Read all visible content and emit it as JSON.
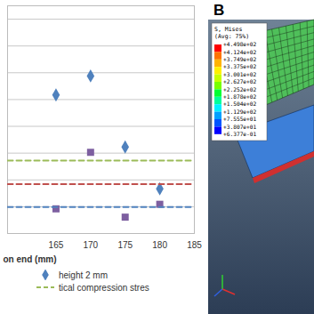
{
  "chart_data": {
    "type": "scatter",
    "xlabel": "on end (mm)",
    "xlim": [
      158,
      185
    ],
    "xticks": [
      165,
      170,
      175,
      180,
      185
    ],
    "ylim": [
      0,
      8.5
    ],
    "yticks": [
      1,
      2,
      3,
      4,
      5,
      6,
      7,
      8
    ],
    "grid": true,
    "tick_labels": "x",
    "series": [
      {
        "name": "height 2 mm",
        "type": "scatter",
        "marker": "diamond",
        "color": "#4f81bd",
        "x": [
          165,
          170,
          175,
          180
        ],
        "values": [
          5.17,
          5.88,
          3.23,
          1.67
        ]
      },
      {
        "type": "scatter",
        "marker": "square",
        "color": "#7d5fa0",
        "x": [
          165,
          170,
          175,
          180
        ],
        "values": [
          0.92,
          3.03,
          0.61,
          1.09
        ]
      },
      {
        "name": "tical compression stres",
        "type": "line",
        "line_style": "dashed",
        "color": "#9bbb59",
        "x": [
          158,
          185
        ],
        "values": [
          2.72,
          2.72
        ]
      },
      {
        "type": "line",
        "line_style": "dashed",
        "color": "#c0504d",
        "x": [
          158,
          185
        ],
        "values": [
          1.84,
          1.84
        ]
      },
      {
        "type": "line",
        "line_style": "dashed",
        "color": "#4f81bd",
        "x": [
          158,
          185
        ],
        "values": [
          0.99,
          0.99
        ]
      }
    ]
  },
  "panel_b": {
    "label": "B",
    "contour_legend": {
      "title": "S, Mises",
      "subtitle": "(Avg: 75%)",
      "values": [
        {
          "value": 449.8,
          "label": "+4.498e+02"
        },
        {
          "value": 412.4,
          "label": "+4.124e+02"
        },
        {
          "value": 374.9,
          "label": "+3.749e+02"
        },
        {
          "value": 337.5,
          "label": "+3.375e+02"
        },
        {
          "value": 300.1,
          "label": "+3.001e+02"
        },
        {
          "value": 262.7,
          "label": "+2.627e+02"
        },
        {
          "value": 225.2,
          "label": "+2.252e+02"
        },
        {
          "value": 187.8,
          "label": "+1.878e+02"
        },
        {
          "value": 150.4,
          "label": "+1.504e+02"
        },
        {
          "value": 112.9,
          "label": "+1.129e+02"
        },
        {
          "value": 75.55,
          "label": "+7.555e+01"
        },
        {
          "value": 38.07,
          "label": "+3.807e+01"
        },
        {
          "value": 0.6377,
          "label": "+6.377e-01"
        }
      ]
    }
  }
}
